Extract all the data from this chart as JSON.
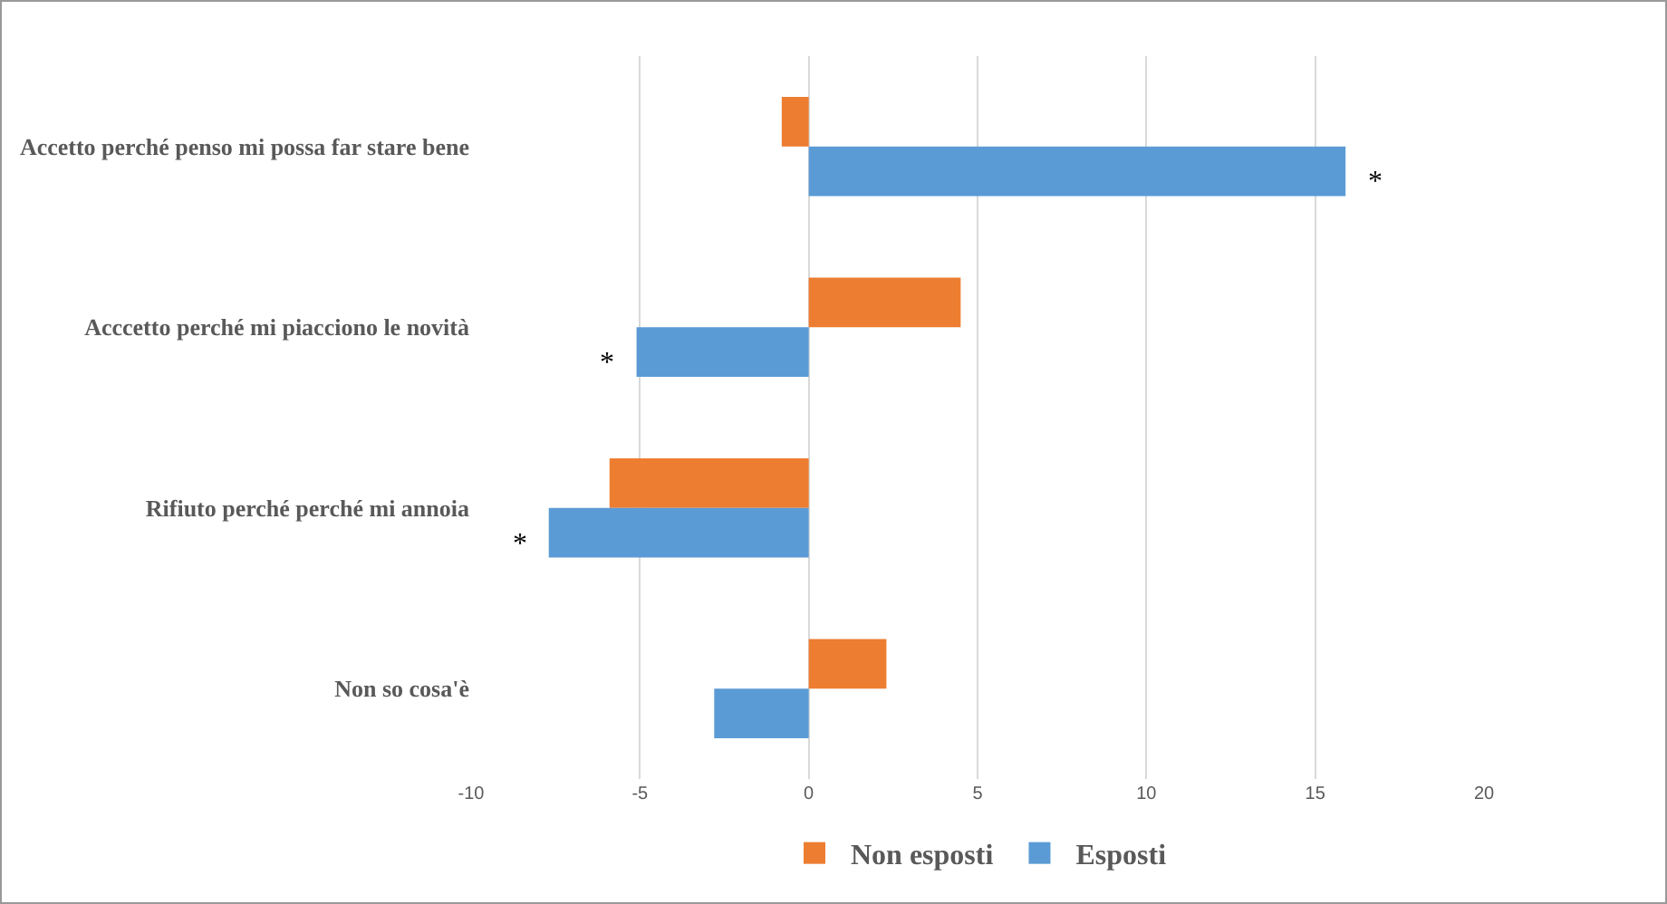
{
  "chart_data": {
    "type": "bar",
    "orientation": "horizontal",
    "categories": [
      "Accetto perché penso mi possa far stare bene",
      "Acccetto perché mi piacciono le novità",
      "Rifiuto perché perché mi annoia",
      "Non so cosa'è"
    ],
    "series": [
      {
        "name": "Non esposti",
        "color": "#ed7d31",
        "values": [
          -0.8,
          4.5,
          -5.9,
          2.3
        ]
      },
      {
        "name": "Esposti",
        "color": "#5b9bd5",
        "values": [
          15.9,
          -5.1,
          -7.7,
          -2.8
        ]
      }
    ],
    "xlim": [
      -10,
      20
    ],
    "xticks": [
      -10,
      -5,
      0,
      5,
      10,
      15,
      20
    ],
    "grid": "x",
    "legend": "bottom",
    "annotations": [
      {
        "text": "*",
        "x": 15.9,
        "y": "Accetto perché penso mi possa far stare bene"
      },
      {
        "text": "*",
        "x": -5.1,
        "y": "Acccetto perché mi piacciono le novità"
      },
      {
        "text": "*",
        "x": -7.7,
        "y": "Rifiuto perché perché mi annoia"
      }
    ]
  }
}
